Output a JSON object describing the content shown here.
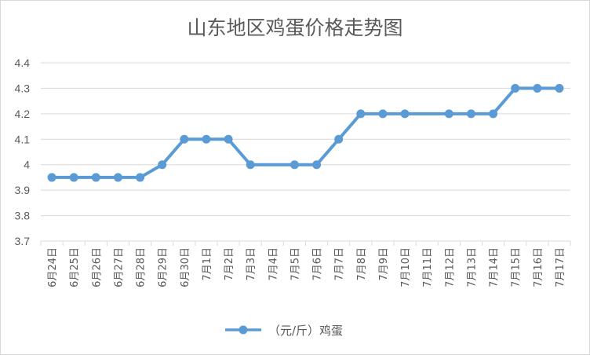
{
  "chart_data": {
    "type": "line",
    "title": "山东地区鸡蛋价格走势图",
    "categories": [
      "6月24日",
      "6月25日",
      "6月26日",
      "6月27日",
      "6月28日",
      "6月29日",
      "6月30日",
      "7月1日",
      "7月2日",
      "7月3日",
      "7月4日",
      "7月5日",
      "7月6日",
      "7月7日",
      "7月8日",
      "7月9日",
      "7月10日",
      "7月11日",
      "7月12日",
      "7月13日",
      "7月14日",
      "7月15日",
      "7月16日",
      "7月17日"
    ],
    "series": [
      {
        "name": "（元/斤）鸡蛋",
        "values": [
          3.95,
          3.95,
          3.95,
          3.95,
          3.95,
          4.0,
          4.1,
          4.1,
          4.1,
          4.0,
          null,
          4.0,
          4.0,
          4.1,
          4.2,
          4.2,
          4.2,
          null,
          4.2,
          4.2,
          4.2,
          4.3,
          4.3,
          4.3
        ],
        "color": "#5b9bd5"
      }
    ],
    "ylim": [
      3.7,
      4.4
    ],
    "yticks": [
      "3.7",
      "3.8",
      "3.9",
      "4",
      "4.1",
      "4.2",
      "4.3",
      "4.4"
    ],
    "grid": true,
    "legend_position": "bottom"
  }
}
